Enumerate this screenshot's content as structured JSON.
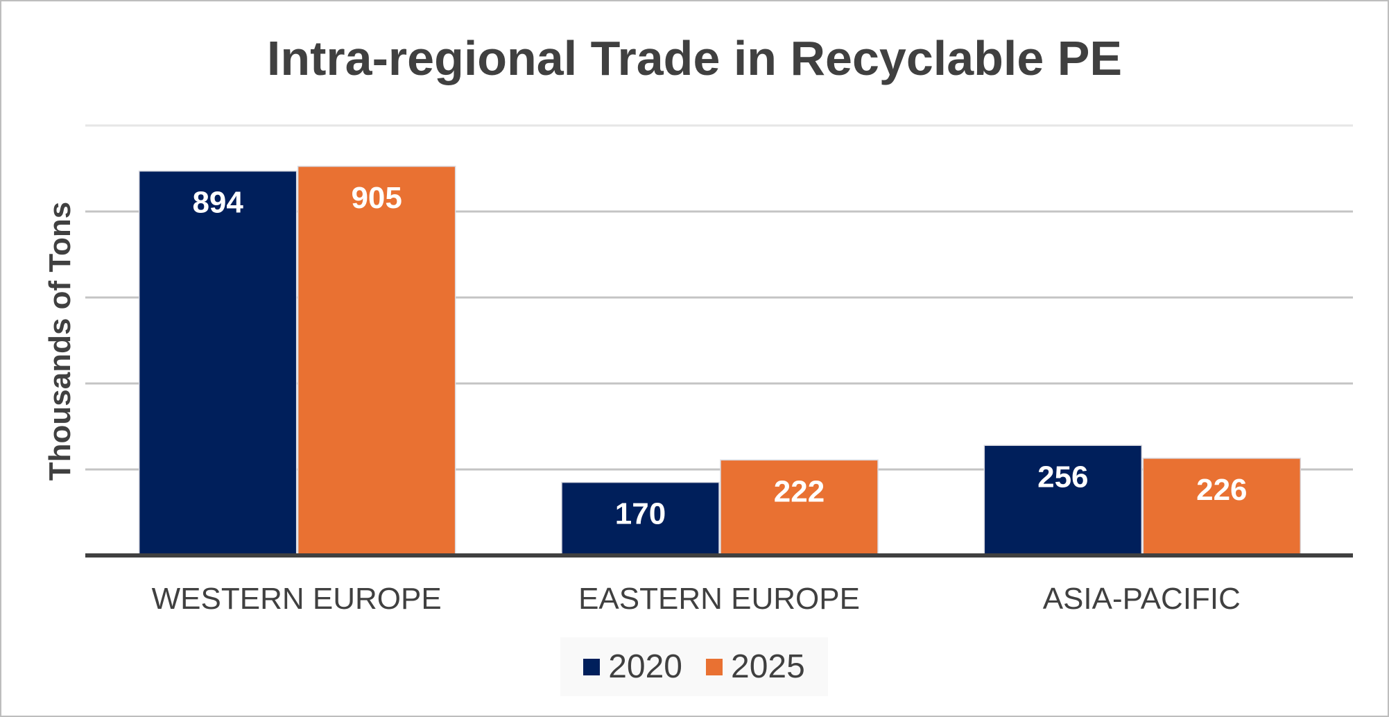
{
  "chart_data": {
    "type": "bar",
    "title": "Intra-regional Trade in Recyclable PE",
    "xlabel": "",
    "ylabel": "Thousands of Tons",
    "categories": [
      "WESTERN EUROPE",
      "EASTERN EUROPE",
      "ASIA-PACIFIC"
    ],
    "series": [
      {
        "name": "2020",
        "values": [
          894,
          170,
          256
        ],
        "color": "#001f5b"
      },
      {
        "name": "2025",
        "values": [
          905,
          222,
          226
        ],
        "color": "#e97132"
      }
    ],
    "ylim": [
      0,
      1000
    ],
    "yticks": [
      0,
      200,
      400,
      600,
      800,
      1000
    ],
    "grid": true,
    "legend": "bottom"
  }
}
